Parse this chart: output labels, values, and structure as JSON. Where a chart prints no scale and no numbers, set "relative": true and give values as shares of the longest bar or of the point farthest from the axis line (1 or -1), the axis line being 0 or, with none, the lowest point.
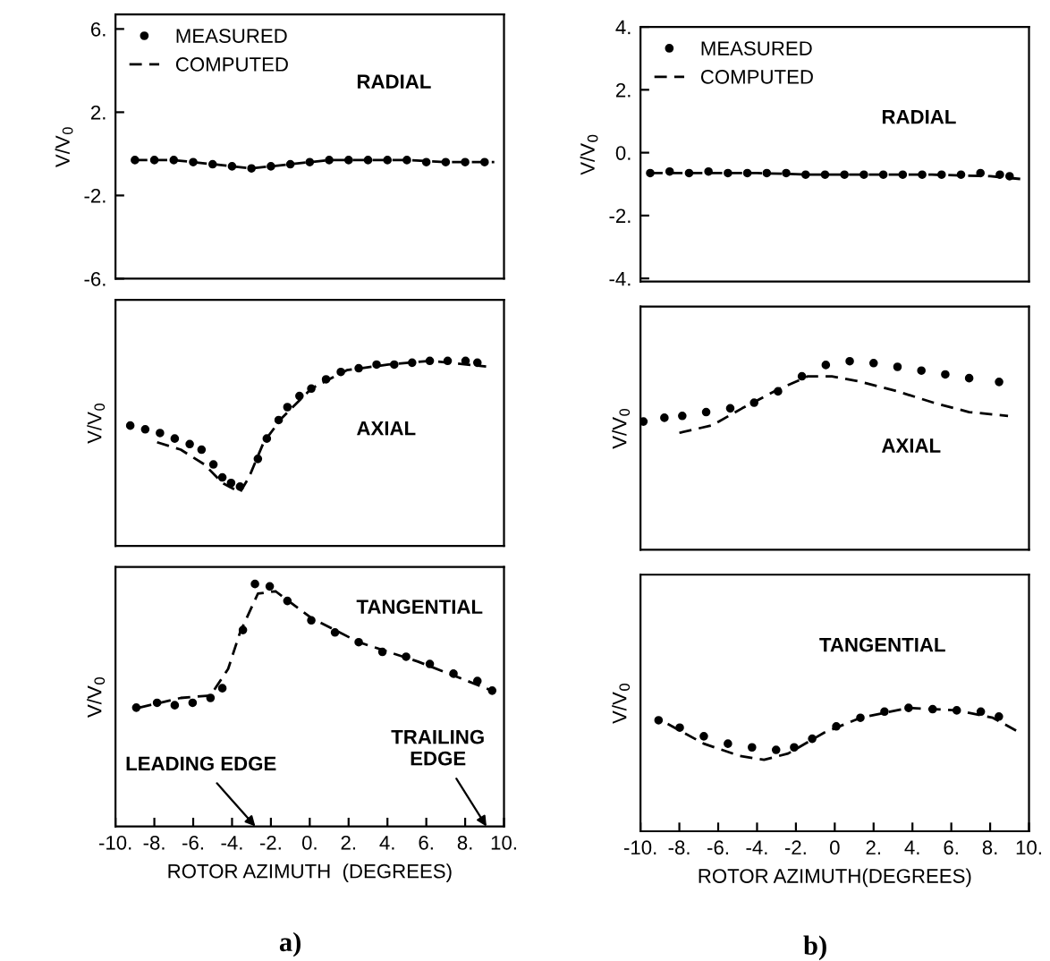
{
  "chart_data": [
    {
      "type": "line",
      "ylabel": "V/V$_{0}$",
      "xlim": [
        -10,
        10
      ],
      "ylim": [
        -6,
        6.7
      ],
      "yticks": [
        {
          "value": 6,
          "label": "6."
        },
        {
          "value": 2,
          "label": "2."
        },
        {
          "value": -2,
          "label": "-2."
        },
        {
          "value": -6,
          "label": "-6."
        }
      ],
      "tick_labels": "y",
      "legend": "top left",
      "annotations": [
        "RADIAL"
      ],
      "series": [
        {
          "name": "MEASURED",
          "type": "scatter",
          "marker": "circle",
          "color": "#000000",
          "x": [
            -9,
            -8,
            -7,
            -6,
            -5,
            -4,
            -3,
            -2,
            -1,
            0,
            1,
            2,
            3,
            4,
            5,
            6,
            7,
            8,
            9
          ],
          "values": [
            -0.3,
            -0.3,
            -0.3,
            -0.4,
            -0.5,
            -0.6,
            -0.7,
            -0.6,
            -0.5,
            -0.4,
            -0.3,
            -0.3,
            -0.3,
            -0.3,
            -0.3,
            -0.4,
            -0.4,
            -0.4,
            -0.4
          ]
        },
        {
          "name": "COMPUTED",
          "type": "line",
          "line_style": "dashed",
          "color": "#000000",
          "x": [
            -9,
            -7,
            -5,
            -3,
            -1,
            1,
            3,
            5,
            7,
            9.5
          ],
          "values": [
            -0.3,
            -0.3,
            -0.5,
            -0.7,
            -0.5,
            -0.3,
            -0.3,
            -0.3,
            -0.4,
            -0.4
          ]
        }
      ]
    },
    {
      "type": "line",
      "ylabel": "V/V$_{0}$",
      "xlim": [
        -10,
        10
      ],
      "ylim": [
        -4.1,
        4
      ],
      "yticks": [
        {
          "value": 4,
          "label": "4."
        },
        {
          "value": 2,
          "label": "2."
        },
        {
          "value": 0,
          "label": "0."
        },
        {
          "value": -2,
          "label": "-2."
        },
        {
          "value": -4,
          "label": "-4."
        }
      ],
      "tick_labels": "y",
      "legend": "top left",
      "annotations": [
        "RADIAL"
      ],
      "series": [
        {
          "name": "MEASURED",
          "type": "scatter",
          "marker": "circle",
          "color": "#000000",
          "x": [
            -9.5,
            -8.5,
            -7.5,
            -6.5,
            -5.5,
            -4.5,
            -3.5,
            -2.5,
            -1.5,
            -0.5,
            0.5,
            1.5,
            2.5,
            3.5,
            4.5,
            5.5,
            6.5,
            7.5,
            8.5,
            9
          ],
          "values": [
            -0.65,
            -0.6,
            -0.65,
            -0.6,
            -0.65,
            -0.65,
            -0.65,
            -0.65,
            -0.7,
            -0.7,
            -0.7,
            -0.7,
            -0.7,
            -0.7,
            -0.7,
            -0.7,
            -0.7,
            -0.65,
            -0.7,
            -0.75
          ]
        },
        {
          "name": "COMPUTED",
          "type": "line",
          "line_style": "dashed",
          "color": "#000000",
          "x": [
            -9.5,
            -7,
            -4,
            -1,
            2,
            5,
            8,
            9.8
          ],
          "values": [
            -0.65,
            -0.65,
            -0.65,
            -0.7,
            -0.7,
            -0.7,
            -0.75,
            -0.85
          ]
        }
      ]
    },
    {
      "type": "line",
      "relative": true,
      "ylabel": "V/V$_{0}$",
      "xlim": [
        -10,
        10
      ],
      "tick_labels": false,
      "annotations": [
        "AXIAL"
      ],
      "series": [
        {
          "type": "scatter",
          "marker": "circle",
          "color": "#000000",
          "x": [
            -9.24,
            -8.47,
            -7.71,
            -6.95,
            -6.18,
            -5.57,
            -4.96,
            -4.5,
            -4.05,
            -3.59,
            -2.67,
            -2.21,
            -1.6,
            -1.15,
            -0.53,
            0.08,
            0.84,
            1.6,
            2.52,
            3.44,
            4.35,
            5.27,
            6.18,
            7.1,
            8.02,
            8.63
          ],
          "values": [
            0.65,
            0.63,
            0.61,
            0.58,
            0.55,
            0.52,
            0.44,
            0.37,
            0.34,
            0.32,
            0.47,
            0.58,
            0.68,
            0.75,
            0.81,
            0.85,
            0.9,
            0.94,
            0.96,
            0.98,
            0.98,
            0.99,
            1.0,
            1.0,
            1.0,
            0.99
          ]
        },
        {
          "type": "line",
          "line_style": "dashed",
          "color": "#000000",
          "x": [
            -7.86,
            -6.64,
            -5.42,
            -4.5,
            -3.59,
            -3.13,
            -2.37,
            -1.45,
            0.08,
            1.91,
            4.05,
            6.18,
            9.08
          ],
          "values": [
            0.56,
            0.52,
            0.44,
            0.34,
            0.29,
            0.37,
            0.56,
            0.69,
            0.85,
            0.95,
            0.98,
            1.0,
            0.97
          ]
        }
      ]
    },
    {
      "type": "line",
      "relative": true,
      "ylabel": "V/V$_{0}$",
      "xlim": [
        -10,
        10
      ],
      "tick_labels": false,
      "annotations": [
        "AXIAL"
      ],
      "series": [
        {
          "type": "scatter",
          "marker": "circle",
          "color": "#000000",
          "x": [
            -9.85,
            -8.77,
            -7.85,
            -6.62,
            -5.38,
            -4.15,
            -2.92,
            -1.69,
            -0.46,
            0.77,
            2.0,
            3.23,
            4.46,
            5.69,
            6.92,
            8.46
          ],
          "values": [
            0.68,
            0.7,
            0.71,
            0.73,
            0.75,
            0.78,
            0.84,
            0.92,
            0.98,
            1.0,
            0.99,
            0.97,
            0.95,
            0.93,
            0.91,
            0.89
          ]
        },
        {
          "type": "line",
          "line_style": "dashed",
          "color": "#000000",
          "x": [
            -8.0,
            -6.31,
            -4.77,
            -2.92,
            -1.38,
            -0.15,
            1.38,
            3.23,
            5.08,
            6.92,
            8.92
          ],
          "values": [
            0.62,
            0.66,
            0.75,
            0.85,
            0.92,
            0.92,
            0.89,
            0.84,
            0.78,
            0.73,
            0.71
          ]
        }
      ]
    },
    {
      "type": "line",
      "relative": true,
      "ylabel": "V/V$_{0}$",
      "xlabel": "ROTOR AZIMUTH  (DEGREES)",
      "xlim": [
        -10,
        10
      ],
      "xticks": [
        {
          "value": -10,
          "label": "-10."
        },
        {
          "value": -8,
          "label": "-8."
        },
        {
          "value": -6,
          "label": "-6."
        },
        {
          "value": -4,
          "label": "-4."
        },
        {
          "value": -2,
          "label": "-2."
        },
        {
          "value": 0,
          "label": "0."
        },
        {
          "value": 2,
          "label": "2."
        },
        {
          "value": 4,
          "label": "4."
        },
        {
          "value": 6,
          "label": "6."
        },
        {
          "value": 8,
          "label": "8."
        },
        {
          "value": 10,
          "label": "10."
        }
      ],
      "tick_labels": "x",
      "annotations": [
        "TANGENTIAL",
        "LEADING EDGE",
        "TRAILING\nEDGE",
        "a)"
      ],
      "series": [
        {
          "type": "scatter",
          "marker": "circle",
          "color": "#000000",
          "x": [
            -8.93,
            -7.86,
            -6.95,
            -6.03,
            -5.11,
            -4.5,
            -3.44,
            -2.82,
            -2.06,
            -1.15,
            0.08,
            1.3,
            2.52,
            3.74,
            4.96,
            6.18,
            7.4,
            8.63,
            9.39
          ],
          "values": [
            0.49,
            0.51,
            0.5,
            0.51,
            0.53,
            0.57,
            0.81,
            1.0,
            0.99,
            0.93,
            0.85,
            0.8,
            0.76,
            0.72,
            0.7,
            0.67,
            0.63,
            0.6,
            0.56
          ]
        },
        {
          "type": "line",
          "line_style": "dashed",
          "color": "#000000",
          "x": [
            -8.78,
            -6.64,
            -5.11,
            -4.2,
            -3.59,
            -2.67,
            -1.76,
            0.08,
            2.52,
            5.57,
            9.39
          ],
          "values": [
            0.49,
            0.53,
            0.54,
            0.65,
            0.8,
            0.96,
            0.97,
            0.86,
            0.76,
            0.68,
            0.56
          ]
        }
      ]
    },
    {
      "type": "line",
      "relative": true,
      "ylabel": "V/V$_{0}$",
      "xlabel": "ROTOR AZIMUTH(DEGREES)",
      "xlim": [
        -10,
        10
      ],
      "xticks": [
        {
          "value": -10,
          "label": "-10."
        },
        {
          "value": -8,
          "label": "-8."
        },
        {
          "value": -6,
          "label": "-6."
        },
        {
          "value": -4,
          "label": "-4."
        },
        {
          "value": -2,
          "label": "-2."
        },
        0,
        {
          "value": 2,
          "label": "2."
        },
        {
          "value": 4,
          "label": "4."
        },
        {
          "value": 6,
          "label": "6."
        },
        {
          "value": 8,
          "label": "8."
        },
        {
          "value": 10,
          "label": "10."
        }
      ],
      "tick_labels": "x",
      "annotations": [
        "TANGENTIAL",
        "b)"
      ],
      "series": [
        {
          "type": "scatter",
          "marker": "circle",
          "color": "#000000",
          "x": [
            -9.07,
            -7.98,
            -6.74,
            -5.5,
            -4.26,
            -3.02,
            -2.09,
            -1.16,
            0.08,
            1.32,
            2.56,
            3.8,
            5.04,
            6.28,
            7.52,
            8.45
          ],
          "values": [
            0.9,
            0.84,
            0.77,
            0.71,
            0.68,
            0.66,
            0.68,
            0.75,
            0.85,
            0.92,
            0.97,
            1.0,
            0.99,
            0.98,
            0.97,
            0.93
          ]
        },
        {
          "type": "line",
          "line_style": "dashed",
          "color": "#000000",
          "x": [
            -8.6,
            -6.74,
            -4.88,
            -3.64,
            -2.4,
            -0.54,
            1.32,
            3.8,
            6.28,
            8.14,
            9.53
          ],
          "values": [
            0.87,
            0.71,
            0.61,
            0.58,
            0.63,
            0.8,
            0.92,
            1.0,
            0.98,
            0.92,
            0.8
          ]
        }
      ]
    }
  ]
}
